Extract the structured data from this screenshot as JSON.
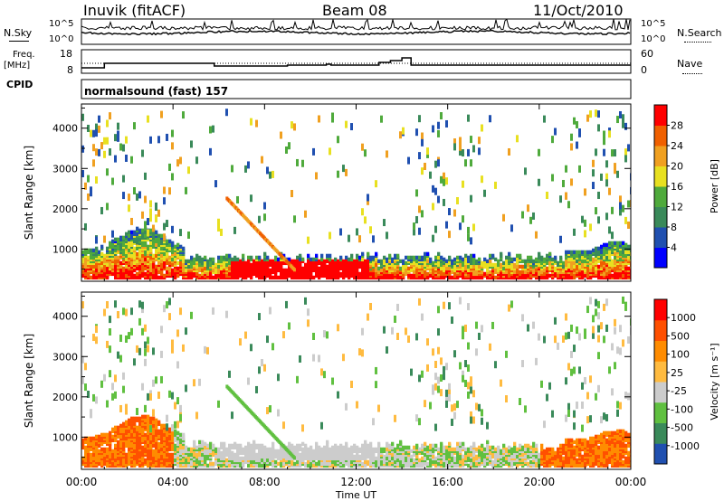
{
  "header": {
    "station": "Inuvik (fitACF)",
    "beam": "Beam 08",
    "date": "11/Oct/2010"
  },
  "noise_panel": {
    "left_label": "N.Sky",
    "left_ticks": [
      "10^5",
      "10^0"
    ],
    "right_label": "N.Search",
    "right_ticks": [
      "10^5",
      "10^0"
    ]
  },
  "freq_panel": {
    "left_label_1": "Freq.",
    "left_label_2": "[MHz]",
    "left_ticks": [
      "18",
      "8"
    ],
    "right_label": "Nave",
    "right_ticks": [
      "60",
      "0"
    ]
  },
  "cpid_panel": {
    "label": "CPID",
    "value": "normalsound (fast) 157"
  },
  "colors": {
    "power": [
      "#0000ff",
      "#2050b0",
      "#3a8a5a",
      "#4faa3c",
      "#e8e020",
      "#f0a020",
      "#f06000",
      "#ff0000"
    ],
    "velocity": [
      "#ff0000",
      "#ff5000",
      "#ff8c00",
      "#ffbb40",
      "#cccccc",
      "#60c040",
      "#3a8a5a",
      "#2050b0"
    ]
  },
  "chart_data": [
    {
      "type": "heatmap",
      "name": "power",
      "xlabel": "",
      "ylabel": "Slant Range [km]",
      "x_ticks": [
        "00:00",
        "04:00",
        "08:00",
        "12:00",
        "16:00",
        "20:00",
        "00:00"
      ],
      "y_ticks": [
        "1000",
        "2000",
        "3000",
        "4000"
      ],
      "ylim": [
        200,
        4600
      ],
      "colorbar": {
        "label": "Power [dB]",
        "ticks": [
          "4",
          "8",
          "12",
          "16",
          "20",
          "24",
          "28"
        ],
        "range": [
          0,
          32
        ]
      }
    },
    {
      "type": "heatmap",
      "name": "velocity",
      "xlabel": "Time UT",
      "ylabel": "Slant Range [km]",
      "x_ticks": [
        "00:00",
        "04:00",
        "08:00",
        "12:00",
        "16:00",
        "20:00",
        "00:00"
      ],
      "y_ticks": [
        "1000",
        "2000",
        "3000",
        "4000"
      ],
      "ylim": [
        200,
        4600
      ],
      "colorbar": {
        "label": "Velocity [m s⁻¹]",
        "ticks": [
          "1000",
          "500",
          "100",
          "25",
          "-25",
          "-100",
          "-500",
          "-1000"
        ]
      }
    }
  ]
}
